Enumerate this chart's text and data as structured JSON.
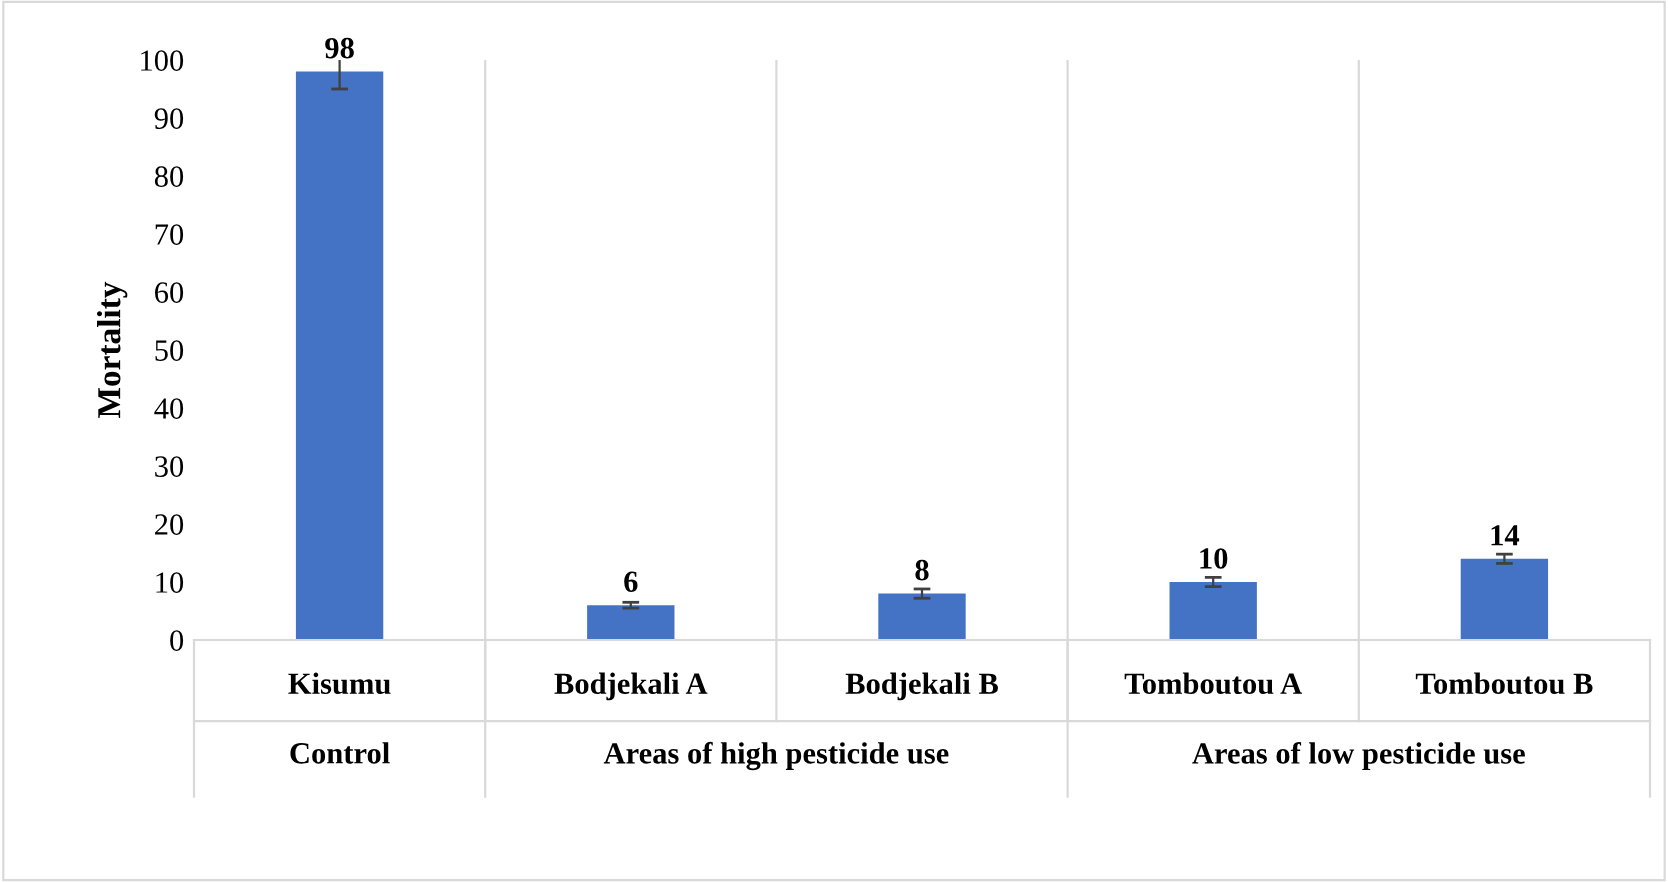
{
  "chart_data": {
    "type": "bar",
    "ylabel": "Mortality",
    "categories": [
      "Kisumu",
      "Bodjekali A",
      "Bodjekali B",
      "Tomboutou A",
      "Tomboutou B"
    ],
    "values": [
      98,
      6,
      8,
      10,
      14
    ],
    "errors": [
      3,
      0.5,
      0.8,
      0.8,
      0.8
    ],
    "color": "#4472c4",
    "ylim": [
      0,
      100
    ],
    "yticks": [
      0,
      10,
      20,
      30,
      40,
      50,
      60,
      70,
      80,
      90,
      100
    ],
    "data_labels": true,
    "annotations": [
      "Control",
      "Areas of high pesticide use",
      "Areas of low pesticide use"
    ]
  }
}
